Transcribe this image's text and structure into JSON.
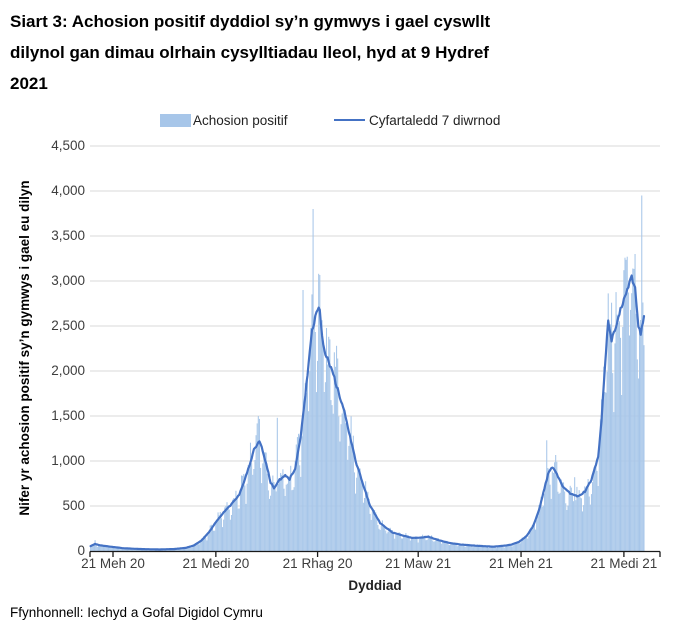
{
  "header": {
    "title": "Siart 3: Achosion positif dyddiol sy’n gymwys i gael cyswllt dilynol gan dimau olrhain cysylltiadau lleol, hyd at 9 Hydref 2021"
  },
  "footer": {
    "source": "Ffynhonnell: Iechyd a Gofal Digidol Cymru"
  },
  "legend": {
    "position": "top",
    "items": [
      {
        "label": "Achosion positif",
        "marker": "bar-swatch",
        "color": "#A7C6E9"
      },
      {
        "label": "Cyfartaledd 7 diwrnod",
        "marker": "line-swatch",
        "color": "#4472C4"
      }
    ]
  },
  "chart_data": {
    "type": "bar",
    "subtype": "daily bars with 7-day average line overlay",
    "title": "Siart 3: Achosion positif dyddiol sy’n gymwys i gael cyswllt dilynol gan dimau olrhain cysylltiadau lleol, hyd at 9 Hydref 2021",
    "xlabel": "Dyddiad",
    "ylabel": "Nifer yr achosion positif sy’n gymwys i gael eu dilyn",
    "ylim": [
      0,
      4500
    ],
    "ytick_step": 500,
    "ytick_labels": [
      "0",
      "500",
      "1,000",
      "1,500",
      "2,000",
      "2,500",
      "3,000",
      "3,500",
      "4,000",
      "4,500"
    ],
    "grid": "horizontal",
    "x_start": "2020-06-01",
    "x_end": "2021-10-09",
    "xticks": [
      {
        "date": "2020-06-21",
        "label": "21 Meh 20"
      },
      {
        "date": "2020-09-21",
        "label": "21 Medi 20"
      },
      {
        "date": "2020-12-21",
        "label": "21 Rhag 20"
      },
      {
        "date": "2021-03-21",
        "label": "21 Maw 21"
      },
      {
        "date": "2021-06-21",
        "label": "21 Meh 21"
      },
      {
        "date": "2021-09-21",
        "label": "21 Medi 21"
      }
    ],
    "series": [
      {
        "name": "Achosion positif",
        "type": "bar",
        "color": "#A7C6E9"
      },
      {
        "name": "Cyfartaledd 7 diwrnod",
        "type": "line",
        "color": "#4472C4",
        "stroke_width": 2.2
      }
    ],
    "avg_keypoints": [
      [
        "2020-06-01",
        55
      ],
      [
        "2020-06-05",
        78
      ],
      [
        "2020-06-10",
        62
      ],
      [
        "2020-06-21",
        45
      ],
      [
        "2020-07-01",
        30
      ],
      [
        "2020-07-15",
        22
      ],
      [
        "2020-08-01",
        17
      ],
      [
        "2020-08-15",
        22
      ],
      [
        "2020-08-25",
        35
      ],
      [
        "2020-09-01",
        60
      ],
      [
        "2020-09-08",
        115
      ],
      [
        "2020-09-15",
        210
      ],
      [
        "2020-09-21",
        320
      ],
      [
        "2020-09-28",
        430
      ],
      [
        "2020-10-05",
        520
      ],
      [
        "2020-10-12",
        630
      ],
      [
        "2020-10-19",
        870
      ],
      [
        "2020-10-25",
        1120
      ],
      [
        "2020-10-30",
        1230
      ],
      [
        "2020-11-04",
        1020
      ],
      [
        "2020-11-09",
        760
      ],
      [
        "2020-11-12",
        700
      ],
      [
        "2020-11-17",
        790
      ],
      [
        "2020-11-22",
        835
      ],
      [
        "2020-11-26",
        800
      ],
      [
        "2020-12-01",
        920
      ],
      [
        "2020-12-06",
        1280
      ],
      [
        "2020-12-11",
        1850
      ],
      [
        "2020-12-16",
        2430
      ],
      [
        "2020-12-20",
        2640
      ],
      [
        "2020-12-23",
        2700
      ],
      [
        "2020-12-25",
        2380
      ],
      [
        "2020-12-28",
        2170
      ],
      [
        "2020-12-31",
        2110
      ],
      [
        "2021-01-03",
        2000
      ],
      [
        "2021-01-08",
        1790
      ],
      [
        "2021-01-15",
        1500
      ],
      [
        "2021-01-24",
        1000
      ],
      [
        "2021-02-06",
        500
      ],
      [
        "2021-02-15",
        310
      ],
      [
        "2021-02-26",
        205
      ],
      [
        "2021-03-08",
        170
      ],
      [
        "2021-03-16",
        145
      ],
      [
        "2021-03-24",
        150
      ],
      [
        "2021-03-30",
        160
      ],
      [
        "2021-04-08",
        120
      ],
      [
        "2021-04-18",
        90
      ],
      [
        "2021-04-28",
        72
      ],
      [
        "2021-05-08",
        62
      ],
      [
        "2021-05-18",
        54
      ],
      [
        "2021-05-27",
        48
      ],
      [
        "2021-06-04",
        56
      ],
      [
        "2021-06-12",
        70
      ],
      [
        "2021-06-19",
        100
      ],
      [
        "2021-06-26",
        165
      ],
      [
        "2021-07-02",
        280
      ],
      [
        "2021-07-07",
        450
      ],
      [
        "2021-07-12",
        700
      ],
      [
        "2021-07-16",
        890
      ],
      [
        "2021-07-19",
        935
      ],
      [
        "2021-07-23",
        850
      ],
      [
        "2021-07-28",
        720
      ],
      [
        "2021-08-04",
        640
      ],
      [
        "2021-08-11",
        605
      ],
      [
        "2021-08-17",
        660
      ],
      [
        "2021-08-23",
        790
      ],
      [
        "2021-08-29",
        1050
      ],
      [
        "2021-09-01",
        1450
      ],
      [
        "2021-09-04",
        2050
      ],
      [
        "2021-09-07",
        2550
      ],
      [
        "2021-09-10",
        2340
      ],
      [
        "2021-09-13",
        2450
      ],
      [
        "2021-09-18",
        2700
      ],
      [
        "2021-09-23",
        2870
      ],
      [
        "2021-09-28",
        3030
      ],
      [
        "2021-10-01",
        2900
      ],
      [
        "2021-10-04",
        2520
      ],
      [
        "2021-10-06",
        2400
      ],
      [
        "2021-10-08",
        2540
      ],
      [
        "2021-10-09",
        2620
      ]
    ],
    "daily_spikes": [
      [
        "2020-06-05",
        120
      ],
      [
        "2020-11-15",
        1480
      ],
      [
        "2020-12-08",
        2900
      ],
      [
        "2020-12-17",
        3800
      ],
      [
        "2020-12-22",
        3080
      ],
      [
        "2021-07-14",
        1230
      ],
      [
        "2021-08-08",
        820
      ],
      [
        "2021-09-21",
        3120
      ],
      [
        "2021-09-24",
        3270
      ],
      [
        "2021-10-01",
        3300
      ],
      [
        "2021-10-07",
        3950
      ]
    ],
    "bar_noise": {
      "seed": 11,
      "weekday_factors": [
        0.72,
        0.86,
        1.05,
        1.1,
        1.12,
        1.06,
        0.88
      ],
      "jitter": 0.13
    },
    "colors": {
      "gridline": "#D9D9D9",
      "axis": "#1a1a1a"
    }
  }
}
